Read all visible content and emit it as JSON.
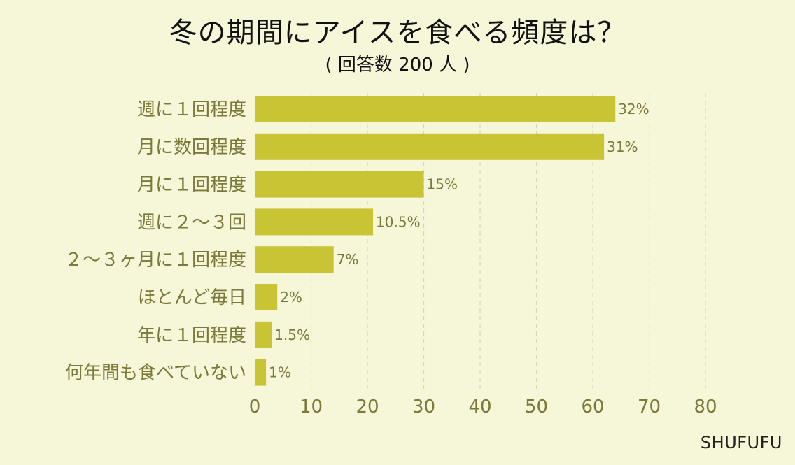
{
  "page": {
    "title": "冬の期間にアイスを食べる頻度は？",
    "subtitle": "( 回答数 200 人 )",
    "credit": "SHUFUFU"
  },
  "colors": {
    "background": "#f6f6d8",
    "bar": "#c9c434",
    "label": "#7b7a3a",
    "grid": "#d6d6c0"
  },
  "chart_data": {
    "type": "bar",
    "orientation": "horizontal",
    "title": "冬の期間にアイスを食べる頻度は？",
    "subtitle": "( 回答数 200 人 )",
    "categories": [
      "週に１回程度",
      "月に数回程度",
      "月に１回程度",
      "週に２～３回",
      "２～３ヶ月に１回程度",
      "ほとんど毎日",
      "年に１回程度",
      "何年間も食べていない"
    ],
    "values": [
      64,
      62,
      30,
      21,
      14,
      4,
      3,
      2
    ],
    "data_labels": [
      "32%",
      "31%",
      "15%",
      "10.5%",
      "7%",
      "2%",
      "1.5%",
      "1%"
    ],
    "xlim": [
      0,
      80
    ],
    "xticks": [
      0,
      10,
      20,
      30,
      40,
      50,
      60,
      70,
      80
    ],
    "grid": "vertical dashed",
    "legend": "none"
  }
}
